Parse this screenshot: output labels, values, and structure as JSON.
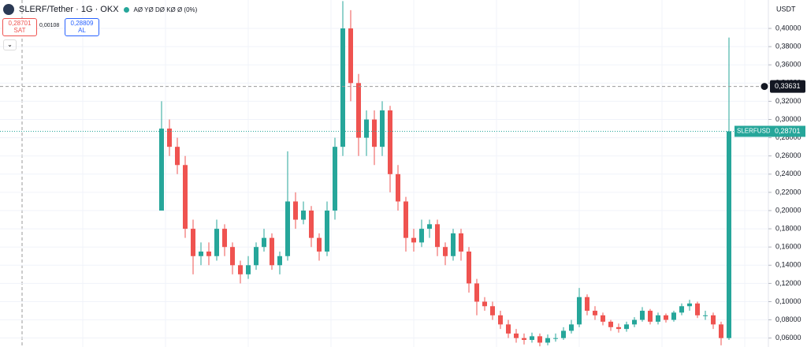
{
  "header": {
    "title": "SLERF/Tether · 1G · OKX",
    "ohlc_text": "AØ YØ DØ KØ Ø (0%)",
    "currency": "USDT"
  },
  "order_panel": {
    "sell_price": "0,28701",
    "sell_label": "SAT",
    "spread": "0,00108",
    "buy_price": "0,28809",
    "buy_label": "AL"
  },
  "chart_data": {
    "type": "candlestick",
    "ylim": [
      0.0502,
      0.4312
    ],
    "yticks": [
      {
        "value": 0.06,
        "label": "0,06000"
      },
      {
        "value": 0.08,
        "label": "0,08000"
      },
      {
        "value": 0.1,
        "label": "0,10000"
      },
      {
        "value": 0.12,
        "label": "0,12000"
      },
      {
        "value": 0.14,
        "label": "0,14000"
      },
      {
        "value": 0.16,
        "label": "0,16000"
      },
      {
        "value": 0.18,
        "label": "0,18000"
      },
      {
        "value": 0.2,
        "label": "0,20000"
      },
      {
        "value": 0.22,
        "label": "0,22000"
      },
      {
        "value": 0.24,
        "label": "0,24000"
      },
      {
        "value": 0.26,
        "label": "0,26000"
      },
      {
        "value": 0.28,
        "label": "0,28000"
      },
      {
        "value": 0.3,
        "label": "0,30000"
      },
      {
        "value": 0.32,
        "label": "0,32000"
      },
      {
        "value": 0.34,
        "label": "0,34000"
      },
      {
        "value": 0.36,
        "label": "0,36000"
      },
      {
        "value": 0.38,
        "label": "0,38000"
      },
      {
        "value": 0.4,
        "label": "0,40000"
      }
    ],
    "up_color": "#26a69a",
    "down_color": "#ef5350",
    "grid": true,
    "crosshair_price": {
      "value": 0.33631,
      "label": "0,33631"
    },
    "last_price": {
      "name": "SLERFUSDT",
      "value": 0.28701,
      "label": "0,28701"
    },
    "open": [
      0.2,
      0.29,
      0.27,
      0.25,
      0.18,
      0.15,
      0.155,
      0.15,
      0.18,
      0.16,
      0.14,
      0.13,
      0.14,
      0.16,
      0.17,
      0.14,
      0.15,
      0.21,
      0.19,
      0.2,
      0.17,
      0.155,
      0.2,
      0.27,
      0.4,
      0.34,
      0.28,
      0.3,
      0.27,
      0.31,
      0.24,
      0.21,
      0.17,
      0.165,
      0.18,
      0.185,
      0.16,
      0.15,
      0.175,
      0.155,
      0.12,
      0.1,
      0.095,
      0.085,
      0.075,
      0.065,
      0.06,
      0.058,
      0.062,
      0.055,
      0.06,
      0.06,
      0.068,
      0.075,
      0.105,
      0.09,
      0.085,
      0.078,
      0.072,
      0.07,
      0.075,
      0.08,
      0.09,
      0.078,
      0.085,
      0.08,
      0.088,
      0.095,
      0.098,
      0.085,
      0.085,
      0.075,
      0.06
    ],
    "high": [
      0.32,
      0.3,
      0.28,
      0.26,
      0.19,
      0.165,
      0.165,
      0.19,
      0.185,
      0.165,
      0.145,
      0.15,
      0.165,
      0.18,
      0.175,
      0.155,
      0.265,
      0.22,
      0.21,
      0.205,
      0.175,
      0.21,
      0.28,
      0.43,
      0.42,
      0.35,
      0.31,
      0.31,
      0.32,
      0.315,
      0.25,
      0.215,
      0.18,
      0.19,
      0.19,
      0.19,
      0.165,
      0.18,
      0.18,
      0.16,
      0.125,
      0.105,
      0.1,
      0.09,
      0.08,
      0.07,
      0.065,
      0.066,
      0.065,
      0.064,
      0.065,
      0.072,
      0.08,
      0.115,
      0.108,
      0.095,
      0.088,
      0.08,
      0.076,
      0.078,
      0.083,
      0.094,
      0.092,
      0.088,
      0.087,
      0.09,
      0.098,
      0.102,
      0.1,
      0.09,
      0.088,
      0.078,
      0.39
    ],
    "low": [
      0.2,
      0.26,
      0.24,
      0.17,
      0.13,
      0.14,
      0.14,
      0.145,
      0.15,
      0.13,
      0.12,
      0.125,
      0.135,
      0.155,
      0.135,
      0.13,
      0.145,
      0.18,
      0.185,
      0.16,
      0.145,
      0.15,
      0.19,
      0.26,
      0.32,
      0.26,
      0.26,
      0.25,
      0.26,
      0.22,
      0.2,
      0.155,
      0.155,
      0.16,
      0.17,
      0.15,
      0.14,
      0.145,
      0.145,
      0.11,
      0.085,
      0.09,
      0.08,
      0.07,
      0.06,
      0.055,
      0.053,
      0.055,
      0.051,
      0.052,
      0.056,
      0.058,
      0.065,
      0.072,
      0.085,
      0.08,
      0.074,
      0.068,
      0.066,
      0.067,
      0.072,
      0.078,
      0.075,
      0.075,
      0.077,
      0.078,
      0.085,
      0.09,
      0.082,
      0.08,
      0.07,
      0.052,
      0.058
    ],
    "close": [
      0.29,
      0.27,
      0.25,
      0.18,
      0.15,
      0.155,
      0.15,
      0.18,
      0.16,
      0.14,
      0.13,
      0.14,
      0.16,
      0.17,
      0.14,
      0.15,
      0.21,
      0.19,
      0.2,
      0.17,
      0.155,
      0.2,
      0.27,
      0.4,
      0.34,
      0.28,
      0.3,
      0.27,
      0.31,
      0.24,
      0.21,
      0.17,
      0.165,
      0.18,
      0.185,
      0.16,
      0.15,
      0.175,
      0.155,
      0.12,
      0.1,
      0.095,
      0.085,
      0.075,
      0.065,
      0.06,
      0.058,
      0.062,
      0.055,
      0.06,
      0.06,
      0.068,
      0.075,
      0.105,
      0.09,
      0.085,
      0.078,
      0.072,
      0.07,
      0.075,
      0.08,
      0.09,
      0.078,
      0.085,
      0.08,
      0.088,
      0.095,
      0.098,
      0.085,
      0.085,
      0.075,
      0.06,
      0.287
    ]
  }
}
